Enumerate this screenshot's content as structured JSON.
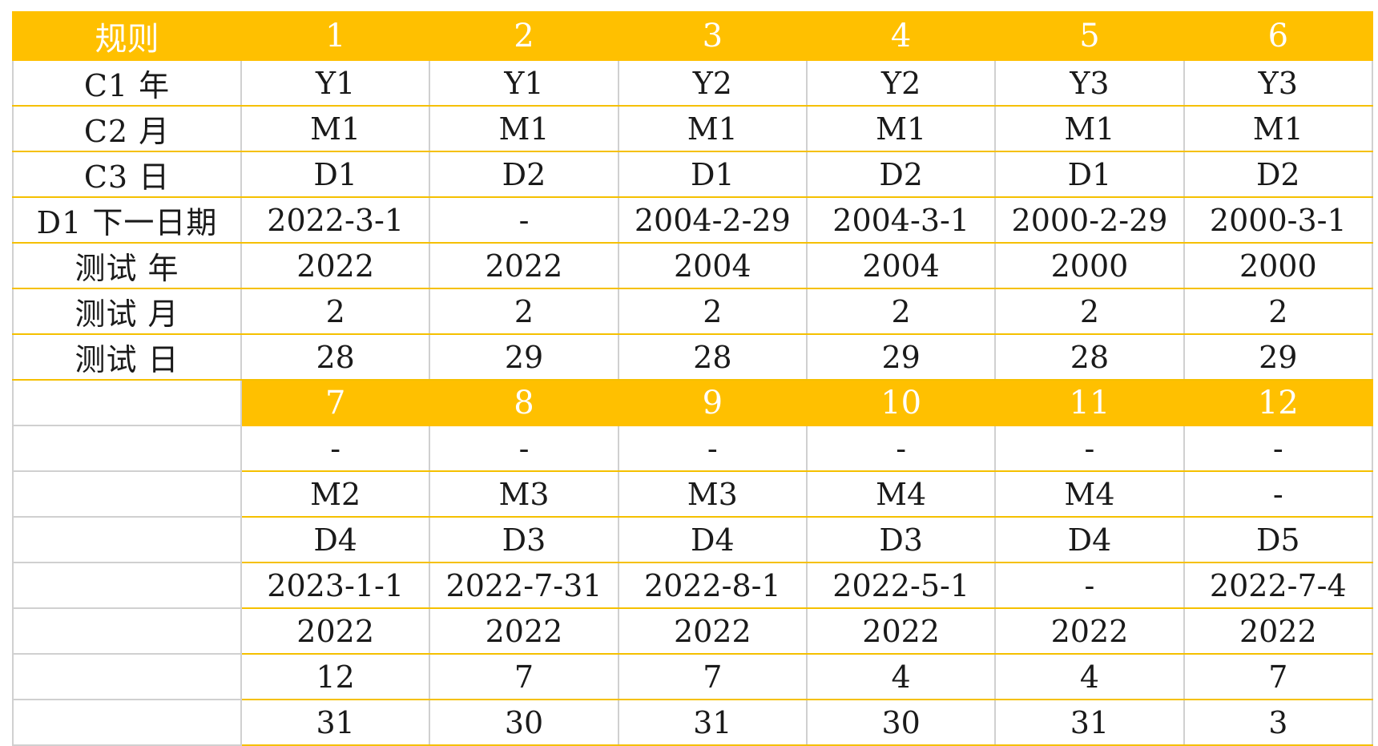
{
  "colors": {
    "header_fill": "#ffc000",
    "header_text": "#ffffff",
    "row_border": "#f5c000",
    "cell_border": "#d0d0d0"
  },
  "table1": {
    "header": [
      "规则",
      "1",
      "2",
      "3",
      "4",
      "5",
      "6"
    ],
    "rows": [
      {
        "label": "C1 年",
        "cells": [
          "Y1",
          "Y1",
          "Y2",
          "Y2",
          "Y3",
          "Y3"
        ]
      },
      {
        "label": "C2 月",
        "cells": [
          "M1",
          "M1",
          "M1",
          "M1",
          "M1",
          "M1"
        ]
      },
      {
        "label": "C3 日",
        "cells": [
          "D1",
          "D2",
          "D1",
          "D2",
          "D1",
          "D2"
        ]
      },
      {
        "label": "D1 下一日期",
        "cells": [
          "2022-3-1",
          "-",
          "2004-2-29",
          "2004-3-1",
          "2000-2-29",
          "2000-3-1"
        ]
      },
      {
        "label": "测试 年",
        "cells": [
          "2022",
          "2022",
          "2004",
          "2004",
          "2000",
          "2000"
        ]
      },
      {
        "label": "测试 月",
        "cells": [
          "2",
          "2",
          "2",
          "2",
          "2",
          "2"
        ]
      },
      {
        "label": "测试 日",
        "cells": [
          "28",
          "29",
          "28",
          "29",
          "28",
          "29"
        ]
      }
    ]
  },
  "table2": {
    "header": [
      "7",
      "8",
      "9",
      "10",
      "11",
      "12"
    ],
    "rows": [
      [
        "-",
        "-",
        "-",
        "-",
        "-",
        "-"
      ],
      [
        "M2",
        "M3",
        "M3",
        "M4",
        "M4",
        "-"
      ],
      [
        "D4",
        "D3",
        "D4",
        "D3",
        "D4",
        "D5"
      ],
      [
        "2023-1-1",
        "2022-7-31",
        "2022-8-1",
        "2022-5-1",
        "-",
        "2022-7-4"
      ],
      [
        "2022",
        "2022",
        "2022",
        "2022",
        "2022",
        "2022"
      ],
      [
        "12",
        "7",
        "7",
        "4",
        "4",
        "7"
      ],
      [
        "31",
        "30",
        "31",
        "30",
        "31",
        "3"
      ]
    ]
  }
}
